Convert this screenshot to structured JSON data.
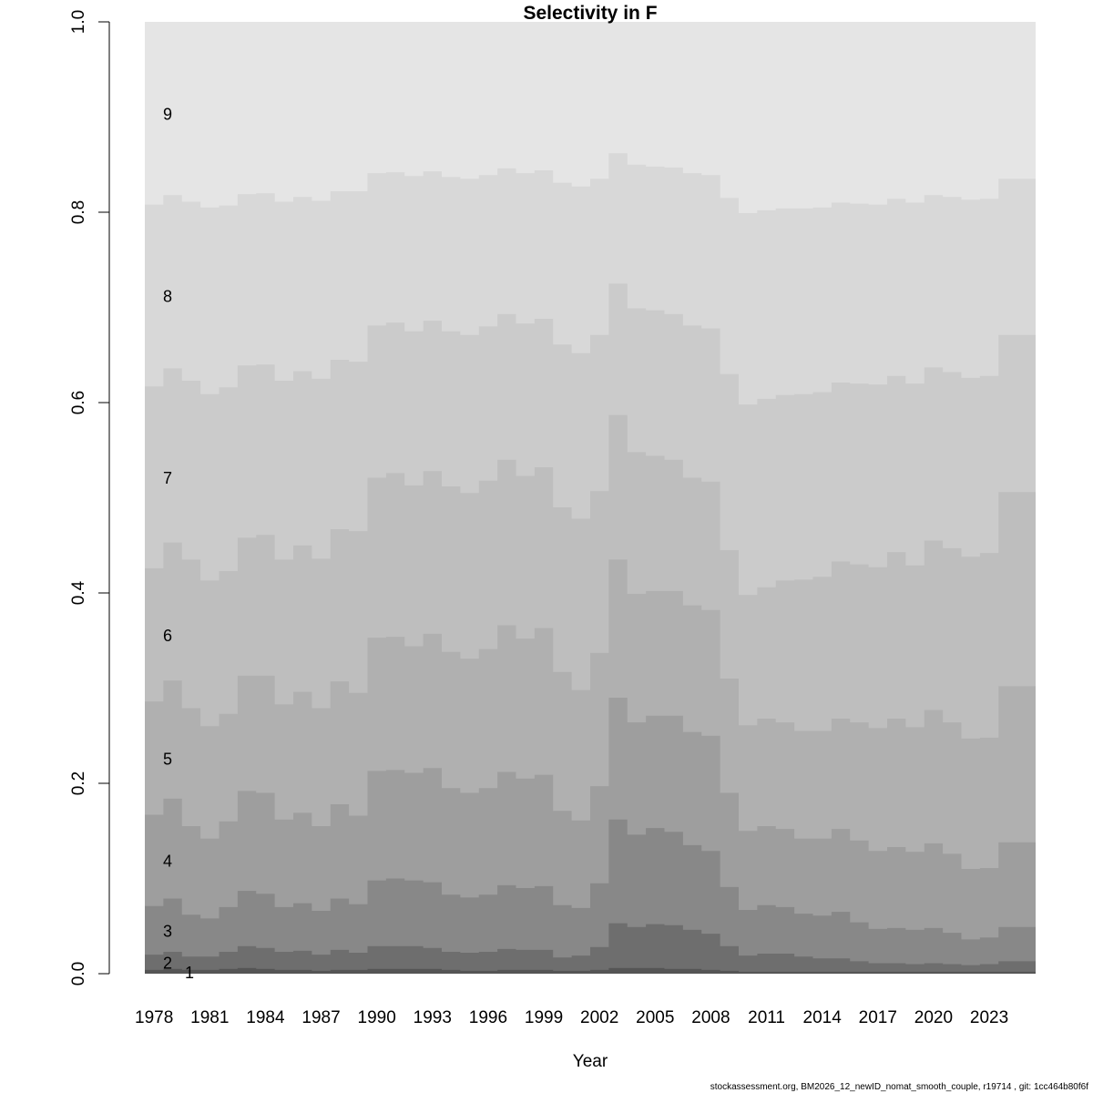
{
  "chart_data": {
    "type": "area",
    "stacked": true,
    "step": true,
    "title": "Selectivity in F",
    "xlabel": "Year",
    "ylabel": "",
    "ylim": [
      0,
      1
    ],
    "yticks": [
      "0.0",
      "0.2",
      "0.4",
      "0.6",
      "0.8",
      "1.0"
    ],
    "xticks": [
      "1978",
      "1981",
      "1984",
      "1987",
      "1990",
      "1993",
      "1996",
      "1999",
      "2002",
      "2005",
      "2008",
      "2011",
      "2014",
      "2017",
      "2020",
      "2023"
    ],
    "grid": false,
    "legend": "none",
    "x": [
      1978,
      1979,
      1980,
      1981,
      1982,
      1983,
      1984,
      1985,
      1986,
      1987,
      1988,
      1989,
      1990,
      1991,
      1992,
      1993,
      1994,
      1995,
      1996,
      1997,
      1998,
      1999,
      2000,
      2001,
      2002,
      2003,
      2004,
      2005,
      2006,
      2007,
      2008,
      2009,
      2010,
      2011,
      2012,
      2013,
      2014,
      2015,
      2016,
      2017,
      2018,
      2019,
      2020,
      2021,
      2022,
      2023,
      2024,
      2025
    ],
    "cumulative_series": [
      {
        "name": "1",
        "colour": "#555555",
        "values": [
          0.004,
          0.005,
          0.004,
          0.004,
          0.005,
          0.006,
          0.005,
          0.004,
          0.004,
          0.003,
          0.004,
          0.004,
          0.005,
          0.005,
          0.005,
          0.005,
          0.004,
          0.003,
          0.003,
          0.004,
          0.004,
          0.004,
          0.003,
          0.003,
          0.004,
          0.006,
          0.006,
          0.006,
          0.005,
          0.005,
          0.004,
          0.003,
          0.002,
          0.002,
          0.002,
          0.002,
          0.002,
          0.002,
          0.002,
          0.002,
          0.002,
          0.002,
          0.002,
          0.002,
          0.002,
          0.002,
          0.002,
          0.002
        ]
      },
      {
        "name": "2",
        "colour": "#6e6e6e",
        "values": [
          0.02,
          0.023,
          0.018,
          0.018,
          0.023,
          0.029,
          0.027,
          0.023,
          0.024,
          0.02,
          0.025,
          0.022,
          0.029,
          0.029,
          0.029,
          0.027,
          0.023,
          0.022,
          0.023,
          0.026,
          0.025,
          0.025,
          0.017,
          0.019,
          0.028,
          0.053,
          0.049,
          0.052,
          0.051,
          0.046,
          0.042,
          0.029,
          0.019,
          0.021,
          0.021,
          0.018,
          0.016,
          0.016,
          0.013,
          0.011,
          0.011,
          0.01,
          0.011,
          0.01,
          0.009,
          0.01,
          0.013,
          0.013
        ]
      },
      {
        "name": "3",
        "colour": "#888888",
        "values": [
          0.071,
          0.079,
          0.062,
          0.058,
          0.07,
          0.087,
          0.084,
          0.07,
          0.074,
          0.066,
          0.079,
          0.073,
          0.098,
          0.1,
          0.098,
          0.096,
          0.083,
          0.08,
          0.083,
          0.093,
          0.09,
          0.092,
          0.072,
          0.069,
          0.095,
          0.162,
          0.146,
          0.153,
          0.149,
          0.135,
          0.129,
          0.091,
          0.067,
          0.072,
          0.07,
          0.063,
          0.061,
          0.065,
          0.054,
          0.047,
          0.048,
          0.046,
          0.048,
          0.043,
          0.036,
          0.038,
          0.049,
          0.049
        ]
      },
      {
        "name": "4",
        "colour": "#9e9e9e",
        "values": [
          0.167,
          0.184,
          0.155,
          0.142,
          0.16,
          0.192,
          0.19,
          0.162,
          0.169,
          0.155,
          0.178,
          0.166,
          0.213,
          0.214,
          0.211,
          0.216,
          0.195,
          0.19,
          0.195,
          0.212,
          0.205,
          0.209,
          0.171,
          0.161,
          0.197,
          0.29,
          0.264,
          0.271,
          0.271,
          0.254,
          0.25,
          0.19,
          0.15,
          0.155,
          0.152,
          0.142,
          0.142,
          0.152,
          0.14,
          0.129,
          0.133,
          0.128,
          0.137,
          0.126,
          0.11,
          0.111,
          0.138,
          0.138
        ]
      },
      {
        "name": "5",
        "colour": "#b0b0b0",
        "values": [
          0.286,
          0.308,
          0.279,
          0.26,
          0.273,
          0.313,
          0.313,
          0.283,
          0.296,
          0.279,
          0.307,
          0.295,
          0.353,
          0.354,
          0.344,
          0.357,
          0.338,
          0.331,
          0.341,
          0.366,
          0.352,
          0.363,
          0.317,
          0.298,
          0.337,
          0.435,
          0.399,
          0.402,
          0.402,
          0.387,
          0.382,
          0.31,
          0.261,
          0.268,
          0.264,
          0.255,
          0.255,
          0.268,
          0.264,
          0.258,
          0.268,
          0.259,
          0.277,
          0.264,
          0.247,
          0.248,
          0.302,
          0.302
        ]
      },
      {
        "name": "6",
        "colour": "#bebebe",
        "values": [
          0.426,
          0.453,
          0.435,
          0.413,
          0.423,
          0.458,
          0.461,
          0.435,
          0.45,
          0.436,
          0.467,
          0.465,
          0.521,
          0.526,
          0.513,
          0.528,
          0.512,
          0.505,
          0.518,
          0.54,
          0.523,
          0.532,
          0.49,
          0.478,
          0.507,
          0.587,
          0.548,
          0.544,
          0.54,
          0.521,
          0.517,
          0.445,
          0.398,
          0.406,
          0.413,
          0.414,
          0.417,
          0.433,
          0.43,
          0.427,
          0.443,
          0.429,
          0.455,
          0.447,
          0.438,
          0.442,
          0.506,
          0.506
        ]
      },
      {
        "name": "7",
        "colour": "#cbcbcb",
        "values": [
          0.617,
          0.636,
          0.623,
          0.609,
          0.616,
          0.639,
          0.64,
          0.623,
          0.633,
          0.625,
          0.645,
          0.643,
          0.681,
          0.684,
          0.675,
          0.686,
          0.675,
          0.671,
          0.68,
          0.693,
          0.683,
          0.688,
          0.661,
          0.652,
          0.671,
          0.725,
          0.699,
          0.697,
          0.693,
          0.681,
          0.678,
          0.63,
          0.598,
          0.604,
          0.608,
          0.609,
          0.611,
          0.621,
          0.62,
          0.619,
          0.628,
          0.62,
          0.637,
          0.632,
          0.626,
          0.628,
          0.671,
          0.671
        ]
      },
      {
        "name": "8",
        "colour": "#d8d8d8",
        "values": [
          0.808,
          0.818,
          0.811,
          0.805,
          0.807,
          0.819,
          0.82,
          0.811,
          0.816,
          0.812,
          0.822,
          0.822,
          0.841,
          0.842,
          0.838,
          0.843,
          0.837,
          0.835,
          0.839,
          0.846,
          0.841,
          0.844,
          0.831,
          0.827,
          0.835,
          0.862,
          0.85,
          0.848,
          0.847,
          0.841,
          0.839,
          0.815,
          0.799,
          0.802,
          0.804,
          0.804,
          0.805,
          0.81,
          0.809,
          0.808,
          0.814,
          0.81,
          0.818,
          0.816,
          0.813,
          0.814,
          0.835,
          0.835
        ]
      },
      {
        "name": "9",
        "colour": "#e5e5e5",
        "values": [
          1,
          1,
          1,
          1,
          1,
          1,
          1,
          1,
          1,
          1,
          1,
          1,
          1,
          1,
          1,
          1,
          1,
          1,
          1,
          1,
          1,
          1,
          1,
          1,
          1,
          1,
          1,
          1,
          1,
          1,
          1,
          1,
          1,
          1,
          1,
          1,
          1,
          1,
          1,
          1,
          1,
          1,
          1,
          1,
          1,
          1,
          1,
          1
        ]
      }
    ]
  },
  "footer": "stockassessment.org, BM2026_12_newID_nomat_smooth_couple, r19714 , git: 1cc464b80f6f"
}
